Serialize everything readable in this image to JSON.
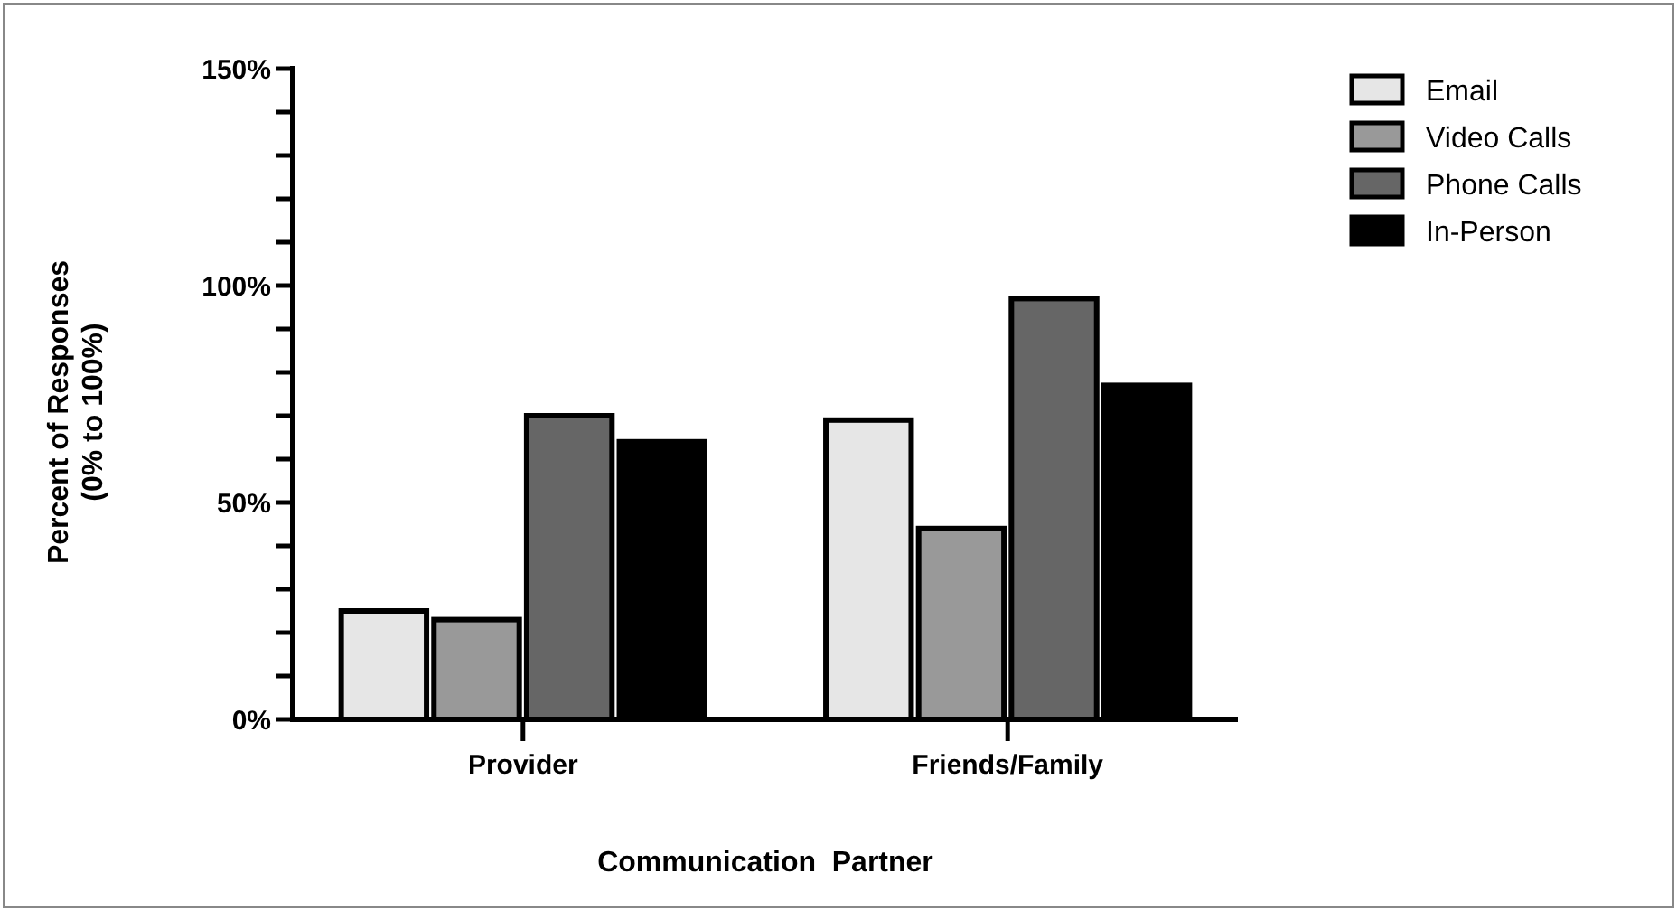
{
  "chart_data": {
    "type": "bar",
    "xlabel": "Communication  Partner",
    "ylabel": "Percent of Responses\n(0% to 100%)",
    "categories": [
      "Provider",
      "Friends/Family"
    ],
    "series": [
      {
        "name": "Email",
        "color": "#e6e6e6",
        "values": [
          25,
          69
        ]
      },
      {
        "name": "Video Calls",
        "color": "#999999",
        "values": [
          23,
          44
        ]
      },
      {
        "name": "Phone Calls",
        "color": "#666666",
        "values": [
          70,
          97
        ]
      },
      {
        "name": "In-Person",
        "color": "#000000",
        "values": [
          64,
          77
        ]
      }
    ],
    "ylim": [
      0,
      150
    ],
    "yticks": [
      {
        "value": 0,
        "label": "0%"
      },
      {
        "value": 10,
        "label": null
      },
      {
        "value": 20,
        "label": null
      },
      {
        "value": 30,
        "label": null
      },
      {
        "value": 40,
        "label": null
      },
      {
        "value": 50,
        "label": "50%"
      },
      {
        "value": 60,
        "label": null
      },
      {
        "value": 70,
        "label": null
      },
      {
        "value": 80,
        "label": null
      },
      {
        "value": 90,
        "label": null
      },
      {
        "value": 100,
        "label": "100%"
      },
      {
        "value": 110,
        "label": null
      },
      {
        "value": 120,
        "label": null
      },
      {
        "value": 130,
        "label": null
      },
      {
        "value": 140,
        "label": null
      },
      {
        "value": 150,
        "label": "150%"
      }
    ],
    "legend": "top right",
    "grid": false
  }
}
